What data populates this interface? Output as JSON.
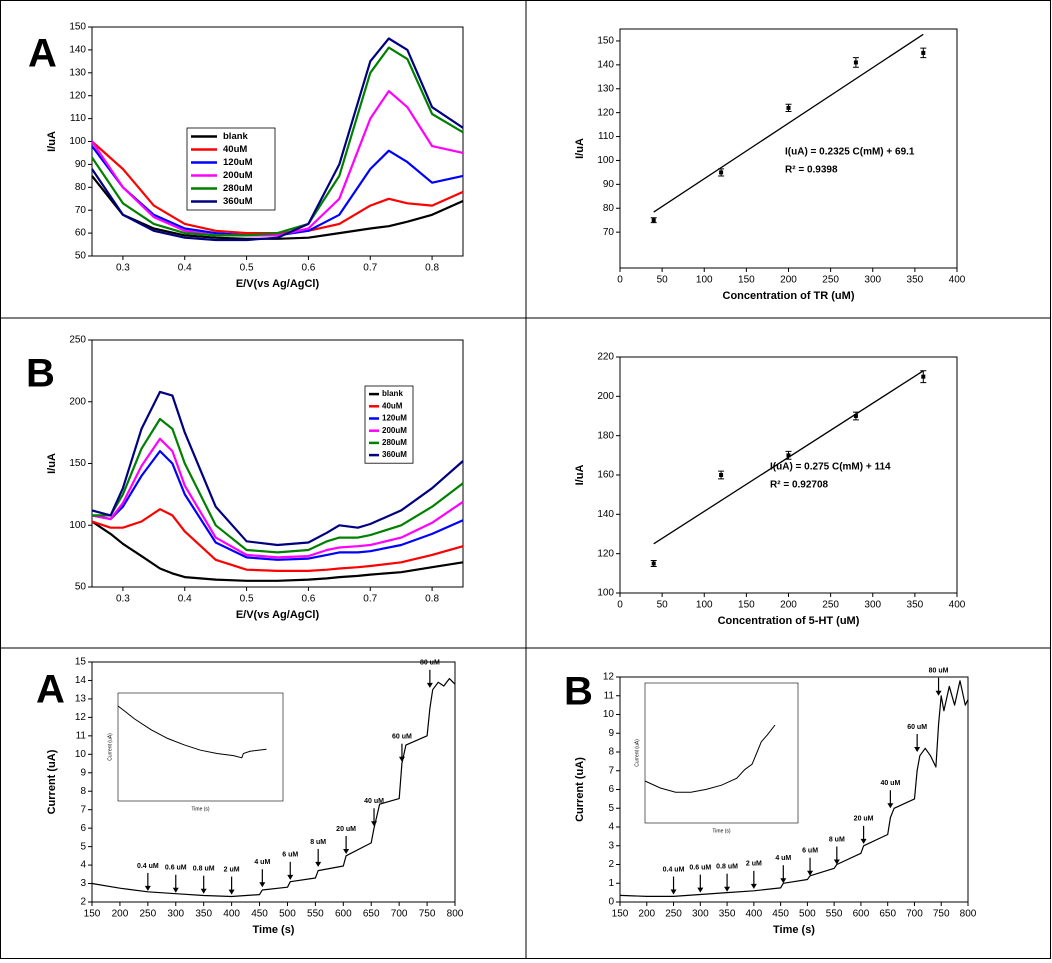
{
  "chart_data": [
    {
      "type": "line",
      "panel": "A",
      "xlabel": "E/V(vs Ag/AgCl)",
      "ylabel": "I/uA",
      "xlim": [
        0.25,
        0.85
      ],
      "xticks": [
        0.3,
        0.4,
        0.5,
        0.6,
        0.7,
        0.8
      ],
      "ylim": [
        50,
        150
      ],
      "yticks": [
        50,
        60,
        70,
        80,
        90,
        100,
        110,
        120,
        130,
        140,
        150
      ],
      "x": [
        0.25,
        0.3,
        0.35,
        0.4,
        0.45,
        0.5,
        0.55,
        0.6,
        0.65,
        0.7,
        0.73,
        0.76,
        0.8,
        0.85
      ],
      "series": [
        {
          "name": "blank",
          "color": "#000000",
          "values": [
            85,
            68,
            62,
            59,
            58,
            57.5,
            57.5,
            58,
            60,
            62,
            63,
            65,
            68,
            74
          ]
        },
        {
          "name": "40uM",
          "color": "#ff0000",
          "values": [
            100,
            88,
            72,
            64,
            61,
            60,
            60,
            61,
            64,
            72,
            75,
            73,
            72,
            78
          ]
        },
        {
          "name": "120uM",
          "color": "#0000ff",
          "values": [
            98,
            80,
            68,
            62,
            60,
            59,
            59,
            61,
            68,
            88,
            96,
            91,
            82,
            85
          ]
        },
        {
          "name": "200uM",
          "color": "#ff00ff",
          "values": [
            100,
            80,
            67,
            61,
            59,
            59,
            59,
            62,
            75,
            110,
            122,
            115,
            98,
            95
          ]
        },
        {
          "name": "280uM",
          "color": "#008000",
          "values": [
            93,
            73,
            64,
            60,
            59,
            59,
            60,
            64,
            85,
            130,
            141,
            136,
            112,
            104
          ]
        },
        {
          "name": "360uM",
          "color": "#000080",
          "values": [
            88,
            68,
            61,
            58,
            57,
            57,
            58,
            64,
            90,
            135,
            145,
            140,
            115,
            106
          ]
        }
      ]
    },
    {
      "type": "scatter",
      "xlabel": "Concentration of TR (uM)",
      "ylabel": "I/uA",
      "xlim": [
        0,
        400
      ],
      "xticks": [
        0,
        50,
        100,
        150,
        200,
        250,
        300,
        350,
        400
      ],
      "ylim": [
        55,
        155
      ],
      "yticks": [
        70,
        80,
        90,
        100,
        110,
        120,
        130,
        140,
        150
      ],
      "x": [
        40,
        120,
        200,
        280,
        360
      ],
      "values": [
        75,
        95,
        122,
        141,
        145
      ],
      "errors": [
        1,
        1.5,
        1.5,
        2,
        2
      ],
      "color": "#000000",
      "fit": {
        "x": [
          40,
          360
        ],
        "y": [
          78.4,
          152.8
        ]
      },
      "annotations": [
        "I(uA) = 0.2325 C(mM) + 69.1",
        "R² = 0.9398"
      ]
    },
    {
      "type": "line",
      "panel": "B",
      "xlabel": "E/V(vs Ag/AgCl)",
      "ylabel": "I/uA",
      "xlim": [
        0.25,
        0.85
      ],
      "xticks": [
        0.3,
        0.4,
        0.5,
        0.6,
        0.7,
        0.8
      ],
      "ylim": [
        50,
        250
      ],
      "yticks": [
        50,
        100,
        150,
        200,
        250
      ],
      "x": [
        0.25,
        0.28,
        0.3,
        0.33,
        0.36,
        0.38,
        0.4,
        0.45,
        0.5,
        0.55,
        0.6,
        0.63,
        0.65,
        0.68,
        0.7,
        0.75,
        0.8,
        0.85
      ],
      "series": [
        {
          "name": "blank",
          "color": "#000000",
          "values": [
            103,
            93,
            85,
            75,
            65,
            61,
            58,
            56,
            55,
            55,
            56,
            57,
            58,
            59,
            60,
            62,
            66,
            70
          ]
        },
        {
          "name": "40uM",
          "color": "#ff0000",
          "values": [
            103,
            98,
            98,
            103,
            113,
            108,
            95,
            72,
            64,
            63,
            63,
            64,
            65,
            66,
            67,
            70,
            76,
            83
          ]
        },
        {
          "name": "120uM",
          "color": "#0000ff",
          "values": [
            108,
            105,
            115,
            140,
            160,
            150,
            125,
            86,
            74,
            72,
            73,
            76,
            78,
            78,
            79,
            84,
            93,
            104
          ]
        },
        {
          "name": "200uM",
          "color": "#ff00ff",
          "values": [
            108,
            105,
            118,
            148,
            170,
            160,
            132,
            90,
            76,
            74,
            75,
            80,
            82,
            83,
            84,
            90,
            102,
            119
          ]
        },
        {
          "name": "280uM",
          "color": "#008000",
          "values": [
            108,
            108,
            125,
            162,
            186,
            178,
            150,
            100,
            80,
            78,
            80,
            87,
            90,
            90,
            92,
            100,
            115,
            134
          ]
        },
        {
          "name": "360uM",
          "color": "#000080",
          "values": [
            112,
            108,
            130,
            178,
            208,
            205,
            175,
            115,
            87,
            84,
            86,
            94,
            100,
            98,
            101,
            112,
            130,
            152
          ]
        }
      ]
    },
    {
      "type": "scatter",
      "xlabel": "Concentration of 5-HT (uM)",
      "ylabel": "I/uA",
      "xlim": [
        0,
        400
      ],
      "xticks": [
        0,
        50,
        100,
        150,
        200,
        250,
        300,
        350,
        400
      ],
      "ylim": [
        100,
        220
      ],
      "yticks": [
        100,
        120,
        140,
        160,
        180,
        200,
        220
      ],
      "x": [
        40,
        120,
        200,
        280,
        360
      ],
      "values": [
        115,
        160,
        170,
        190,
        210
      ],
      "errors": [
        1.5,
        2,
        2,
        2,
        3
      ],
      "color": "#000000",
      "fit": {
        "x": [
          40,
          360
        ],
        "y": [
          125,
          213
        ]
      },
      "annotations": [
        "I(uA) = 0.275 C(mM) + 114",
        "R² = 0.92708"
      ]
    },
    {
      "type": "line",
      "panel": "A",
      "xlabel": "Time (s)",
      "ylabel": "Current (uA)",
      "xlim": [
        150,
        800
      ],
      "xticks": [
        150,
        200,
        250,
        300,
        350,
        400,
        450,
        500,
        550,
        600,
        650,
        700,
        750,
        800
      ],
      "ylim": [
        2,
        15
      ],
      "yticks": [
        2,
        3,
        4,
        5,
        6,
        7,
        8,
        9,
        10,
        11,
        12,
        13,
        14,
        15
      ],
      "x": [
        150,
        200,
        250,
        300,
        350,
        400,
        450,
        455,
        500,
        505,
        550,
        555,
        600,
        605,
        650,
        655,
        665,
        700,
        705,
        712,
        750,
        755,
        760,
        770,
        780,
        790,
        800
      ],
      "series": [
        {
          "color": "#000000",
          "values": [
            3.0,
            2.75,
            2.55,
            2.45,
            2.35,
            2.3,
            2.4,
            2.65,
            2.8,
            3.1,
            3.3,
            3.7,
            3.95,
            4.5,
            5.2,
            6.0,
            7.3,
            7.6,
            9.5,
            10.5,
            11.0,
            12.5,
            13.5,
            13.9,
            13.7,
            14.1,
            13.8
          ]
        }
      ],
      "arrows": [
        {
          "x": 250,
          "y": 2.6,
          "label": "0.4 uM"
        },
        {
          "x": 300,
          "y": 2.5,
          "label": "0.6 uM"
        },
        {
          "x": 350,
          "y": 2.45,
          "label": "0.8 uM"
        },
        {
          "x": 400,
          "y": 2.4,
          "label": "2 uM"
        },
        {
          "x": 455,
          "y": 2.8,
          "label": "4 uM"
        },
        {
          "x": 505,
          "y": 3.2,
          "label": "6 uM"
        },
        {
          "x": 555,
          "y": 3.9,
          "label": "8 uM"
        },
        {
          "x": 605,
          "y": 4.6,
          "label": "20 uM"
        },
        {
          "x": 655,
          "y": 6.1,
          "label": "40 uM"
        },
        {
          "x": 705,
          "y": 9.6,
          "label": "60 uM"
        },
        {
          "x": 755,
          "y": 13.6,
          "label": "80 uM"
        }
      ],
      "inset": {
        "xlabel": "Time (s)",
        "ylabel": "Current (uA)",
        "xlim": [
          0,
          100
        ],
        "ylim": [
          0,
          100
        ],
        "x": [
          0,
          5,
          10,
          20,
          30,
          40,
          50,
          60,
          70,
          75,
          76,
          80,
          90
        ],
        "values": [
          88,
          82,
          76,
          66,
          58,
          52,
          47,
          44,
          42,
          40,
          44,
          46,
          48
        ]
      }
    },
    {
      "type": "line",
      "panel": "B",
      "xlabel": "Time (s)",
      "ylabel": "Current (uA)",
      "xlim": [
        150,
        800
      ],
      "xticks": [
        150,
        200,
        250,
        300,
        350,
        400,
        450,
        500,
        550,
        600,
        650,
        700,
        750,
        800
      ],
      "ylim": [
        0,
        12
      ],
      "yticks": [
        0,
        1,
        2,
        3,
        4,
        5,
        6,
        7,
        8,
        9,
        10,
        11,
        12
      ],
      "x": [
        150,
        200,
        250,
        300,
        350,
        400,
        450,
        455,
        500,
        505,
        550,
        555,
        600,
        605,
        650,
        655,
        662,
        700,
        705,
        710,
        720,
        730,
        740,
        745,
        750,
        755,
        765,
        775,
        785,
        795,
        800
      ],
      "series": [
        {
          "color": "#000000",
          "values": [
            0.35,
            0.3,
            0.3,
            0.4,
            0.5,
            0.6,
            0.75,
            1.0,
            1.2,
            1.4,
            1.8,
            2.0,
            2.6,
            3.0,
            3.6,
            4.5,
            5.0,
            5.5,
            7.0,
            7.8,
            8.2,
            7.8,
            7.2,
            9.5,
            11.0,
            10.2,
            11.5,
            10.5,
            11.8,
            10.5,
            10.8
          ]
        }
      ],
      "arrows": [
        {
          "x": 250,
          "y": 0.4,
          "label": "0.4 uM"
        },
        {
          "x": 300,
          "y": 0.5,
          "label": "0.6 uM"
        },
        {
          "x": 350,
          "y": 0.55,
          "label": "0.8 uM"
        },
        {
          "x": 400,
          "y": 0.7,
          "label": "2 uM"
        },
        {
          "x": 455,
          "y": 1.0,
          "label": "4 uM"
        },
        {
          "x": 505,
          "y": 1.4,
          "label": "6 uM"
        },
        {
          "x": 555,
          "y": 2.0,
          "label": "8 uM"
        },
        {
          "x": 605,
          "y": 3.1,
          "label": "20 uM"
        },
        {
          "x": 655,
          "y": 5.0,
          "label": "40 uM"
        },
        {
          "x": 705,
          "y": 8.0,
          "label": "60 uM"
        },
        {
          "x": 745,
          "y": 11.0,
          "label": "80 uM"
        }
      ],
      "inset": {
        "xlabel": "Time (s)",
        "ylabel": "Current (uA)",
        "xlim": [
          0,
          100
        ],
        "ylim": [
          0,
          100
        ],
        "x": [
          0,
          10,
          20,
          30,
          40,
          50,
          60,
          65,
          70,
          73,
          76,
          80,
          85
        ],
        "values": [
          30,
          25,
          22,
          22,
          24,
          27,
          32,
          38,
          42,
          50,
          58,
          63,
          70
        ]
      }
    }
  ]
}
